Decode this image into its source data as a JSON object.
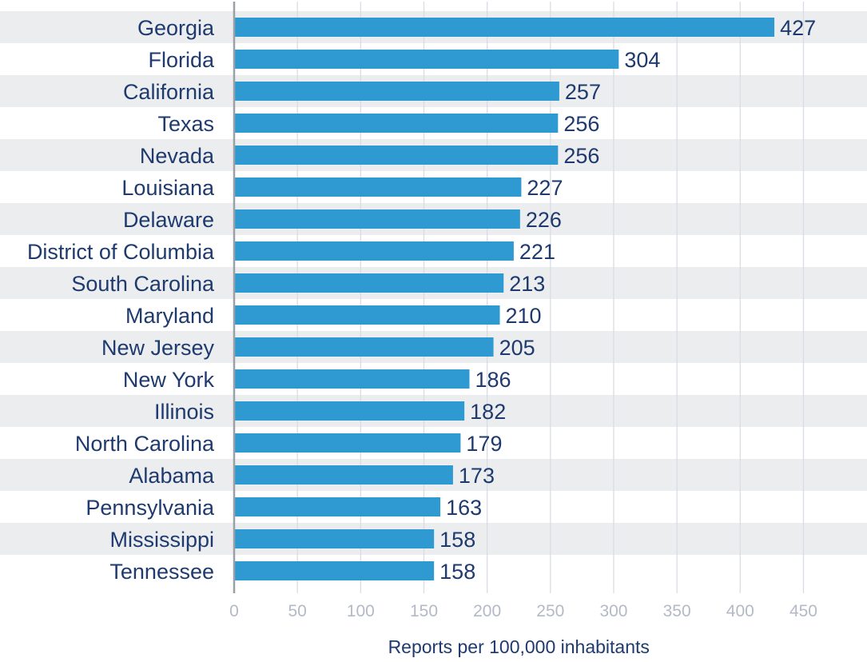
{
  "chart_data": {
    "type": "bar",
    "orientation": "horizontal",
    "title": "",
    "xlabel": "Reports per 100,000 inhabitants",
    "ylabel": "",
    "xlim": [
      0,
      450
    ],
    "xticks": [
      0,
      50,
      100,
      150,
      200,
      250,
      300,
      350,
      400,
      450
    ],
    "grid": true,
    "categories": [
      "Georgia",
      "Florida",
      "California",
      "Texas",
      "Nevada",
      "Louisiana",
      "Delaware",
      "District of Columbia",
      "South Carolina",
      "Maryland",
      "New Jersey",
      "New York",
      "Illinois",
      "North Carolina",
      "Alabama",
      "Pennsylvania",
      "Mississippi",
      "Tennessee"
    ],
    "values": [
      427,
      304,
      257,
      256,
      256,
      227,
      226,
      221,
      213,
      210,
      205,
      186,
      182,
      179,
      173,
      163,
      158,
      158
    ],
    "value_labels": [
      "427",
      "304",
      "257",
      "256",
      "256",
      "227",
      "226",
      "221",
      "213",
      "210",
      "205",
      "186",
      "182",
      "179",
      "173",
      "163",
      "158",
      "158"
    ],
    "colors": {
      "bar": "#2e9ad1",
      "row_band": "#ebedef",
      "grid": "#d9dde3",
      "axis": "#9aa0a8",
      "label": "#1f3a6e",
      "tick": "#b3bac6"
    }
  }
}
